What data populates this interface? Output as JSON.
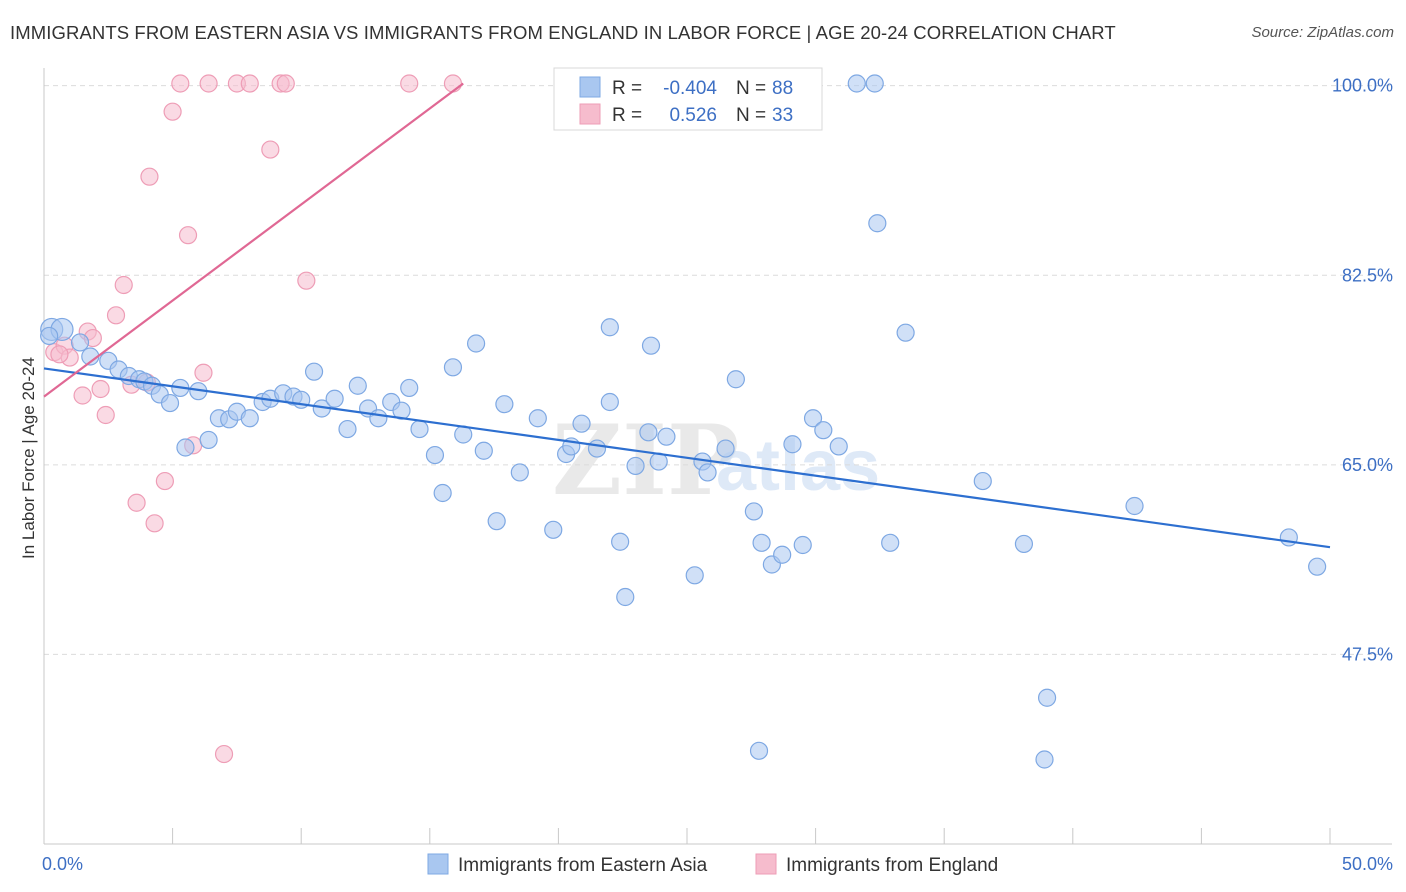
{
  "title": "IMMIGRANTS FROM EASTERN ASIA VS IMMIGRANTS FROM ENGLAND IN LABOR FORCE | AGE 20-24 CORRELATION CHART",
  "source": "Source: ZipAtlas.com",
  "colors": {
    "blue_fill": "#a9c7f0",
    "blue_stroke": "#7ea8e3",
    "blue_line": "#2d6fd0",
    "pink_fill": "#f6bccd",
    "pink_stroke": "#ee9db6",
    "pink_line": "#e06894",
    "axis_text": "#3d6fc4",
    "grid": "#dcdcdc"
  },
  "legend_box": {
    "rows": [
      {
        "r_label": "R =",
        "r_value": "-0.404",
        "n_label": "N =",
        "n_value": "88",
        "series": "blue"
      },
      {
        "r_label": "R =",
        "r_value": "0.526",
        "n_label": "N =",
        "n_value": "33",
        "series": "pink"
      }
    ]
  },
  "bottom_legend": [
    "Immigrants from Eastern Asia",
    "Immigrants from England"
  ],
  "watermark": {
    "zip": "ZIP",
    "atlas": "atlas"
  },
  "chart_data": {
    "type": "scatter",
    "xlabel": "",
    "ylabel": "In Labor Force | Age 20-24",
    "xlim": [
      0,
      50
    ],
    "ylim": [
      30,
      102
    ],
    "x_tick_labels": [
      {
        "value": 0,
        "label": "0.0%"
      },
      {
        "value": 50,
        "label": "50.0%"
      }
    ],
    "y_tick_labels": [
      {
        "value": 100,
        "label": "100.0%"
      },
      {
        "value": 82.5,
        "label": "82.5%"
      },
      {
        "value": 65,
        "label": "65.0%"
      },
      {
        "value": 47.5,
        "label": "47.5%"
      }
    ],
    "grid": "horizontal dashed",
    "legend_position": "top-center",
    "series": [
      {
        "name": "Immigrants from Eastern Asia",
        "color": "#a9c7f0",
        "trend": {
          "x": [
            0,
            50
          ],
          "y": [
            73.9,
            57.4
          ]
        },
        "points": [
          [
            0.3,
            77.5
          ],
          [
            0.7,
            77.5
          ],
          [
            1.4,
            76.3
          ],
          [
            1.8,
            75.0
          ],
          [
            2.5,
            74.6
          ],
          [
            2.9,
            73.8
          ],
          [
            3.3,
            73.2
          ],
          [
            3.7,
            72.9
          ],
          [
            3.9,
            72.7
          ],
          [
            4.2,
            72.3
          ],
          [
            4.5,
            71.5
          ],
          [
            4.9,
            70.7
          ],
          [
            5.3,
            72.1
          ],
          [
            5.5,
            66.6
          ],
          [
            6.0,
            71.8
          ],
          [
            6.4,
            67.3
          ],
          [
            6.8,
            69.3
          ],
          [
            7.2,
            69.2
          ],
          [
            7.5,
            69.9
          ],
          [
            8.0,
            69.3
          ],
          [
            8.5,
            70.8
          ],
          [
            8.8,
            71.1
          ],
          [
            9.3,
            71.6
          ],
          [
            9.7,
            71.3
          ],
          [
            10.0,
            71.0
          ],
          [
            10.5,
            73.6
          ],
          [
            10.8,
            70.2
          ],
          [
            11.3,
            71.1
          ],
          [
            11.8,
            68.3
          ],
          [
            12.2,
            72.3
          ],
          [
            12.6,
            70.2
          ],
          [
            13.0,
            69.3
          ],
          [
            13.5,
            70.8
          ],
          [
            13.9,
            70.0
          ],
          [
            14.2,
            72.1
          ],
          [
            14.6,
            68.3
          ],
          [
            15.2,
            65.9
          ],
          [
            15.5,
            62.4
          ],
          [
            15.9,
            74.0
          ],
          [
            16.3,
            67.8
          ],
          [
            16.8,
            76.2
          ],
          [
            17.1,
            66.3
          ],
          [
            17.6,
            59.8
          ],
          [
            17.9,
            70.6
          ],
          [
            18.5,
            64.3
          ],
          [
            19.2,
            69.3
          ],
          [
            19.8,
            59.0
          ],
          [
            20.3,
            66.0
          ],
          [
            20.5,
            66.7
          ],
          [
            20.9,
            68.8
          ],
          [
            21.5,
            66.5
          ],
          [
            22.0,
            70.8
          ],
          [
            22.0,
            77.7
          ],
          [
            22.4,
            57.9
          ],
          [
            22.6,
            52.8
          ],
          [
            23.0,
            64.9
          ],
          [
            23.5,
            68.0
          ],
          [
            23.6,
            76.0
          ],
          [
            23.9,
            65.3
          ],
          [
            24.2,
            67.6
          ],
          [
            25.3,
            54.8
          ],
          [
            25.6,
            65.3
          ],
          [
            25.8,
            64.3
          ],
          [
            26.5,
            66.5
          ],
          [
            26.9,
            72.9
          ],
          [
            27.6,
            60.7
          ],
          [
            27.9,
            57.8
          ],
          [
            27.8,
            38.6
          ],
          [
            28.3,
            55.8
          ],
          [
            28.7,
            56.7
          ],
          [
            29.1,
            66.9
          ],
          [
            29.5,
            57.6
          ],
          [
            29.9,
            69.3
          ],
          [
            30.3,
            68.2
          ],
          [
            30.9,
            66.7
          ],
          [
            31.6,
            100.2
          ],
          [
            32.3,
            100.2
          ],
          [
            32.4,
            87.3
          ],
          [
            32.9,
            57.8
          ],
          [
            33.5,
            77.2
          ],
          [
            36.5,
            63.5
          ],
          [
            38.1,
            57.7
          ],
          [
            39.0,
            43.5
          ],
          [
            38.9,
            37.8
          ],
          [
            42.4,
            61.2
          ],
          [
            48.4,
            58.3
          ],
          [
            49.5,
            55.6
          ],
          [
            0.2,
            76.9
          ]
        ]
      },
      {
        "name": "Immigrants from England",
        "color": "#f6bccd",
        "trend": {
          "x": [
            0,
            16.3
          ],
          "y": [
            71.3,
            100.2
          ]
        },
        "points": [
          [
            0.4,
            75.4
          ],
          [
            0.8,
            76.0
          ],
          [
            1.0,
            74.9
          ],
          [
            1.5,
            71.4
          ],
          [
            1.7,
            77.3
          ],
          [
            1.9,
            76.7
          ],
          [
            2.2,
            72.0
          ],
          [
            2.4,
            69.6
          ],
          [
            2.8,
            78.8
          ],
          [
            3.1,
            81.6
          ],
          [
            3.4,
            72.4
          ],
          [
            3.6,
            61.5
          ],
          [
            4.0,
            72.6
          ],
          [
            4.1,
            91.6
          ],
          [
            4.3,
            59.6
          ],
          [
            4.7,
            63.5
          ],
          [
            5.0,
            97.6
          ],
          [
            5.3,
            100.2
          ],
          [
            5.6,
            86.2
          ],
          [
            5.8,
            66.8
          ],
          [
            6.2,
            73.5
          ],
          [
            6.4,
            100.2
          ],
          [
            7.0,
            38.3
          ],
          [
            7.5,
            100.2
          ],
          [
            8.0,
            100.2
          ],
          [
            8.8,
            94.1
          ],
          [
            9.2,
            100.2
          ],
          [
            9.4,
            100.2
          ],
          [
            10.2,
            82.0
          ],
          [
            14.2,
            100.2
          ],
          [
            15.9,
            100.2
          ],
          [
            21.0,
            100.2
          ],
          [
            0.6,
            75.2
          ]
        ]
      }
    ]
  }
}
